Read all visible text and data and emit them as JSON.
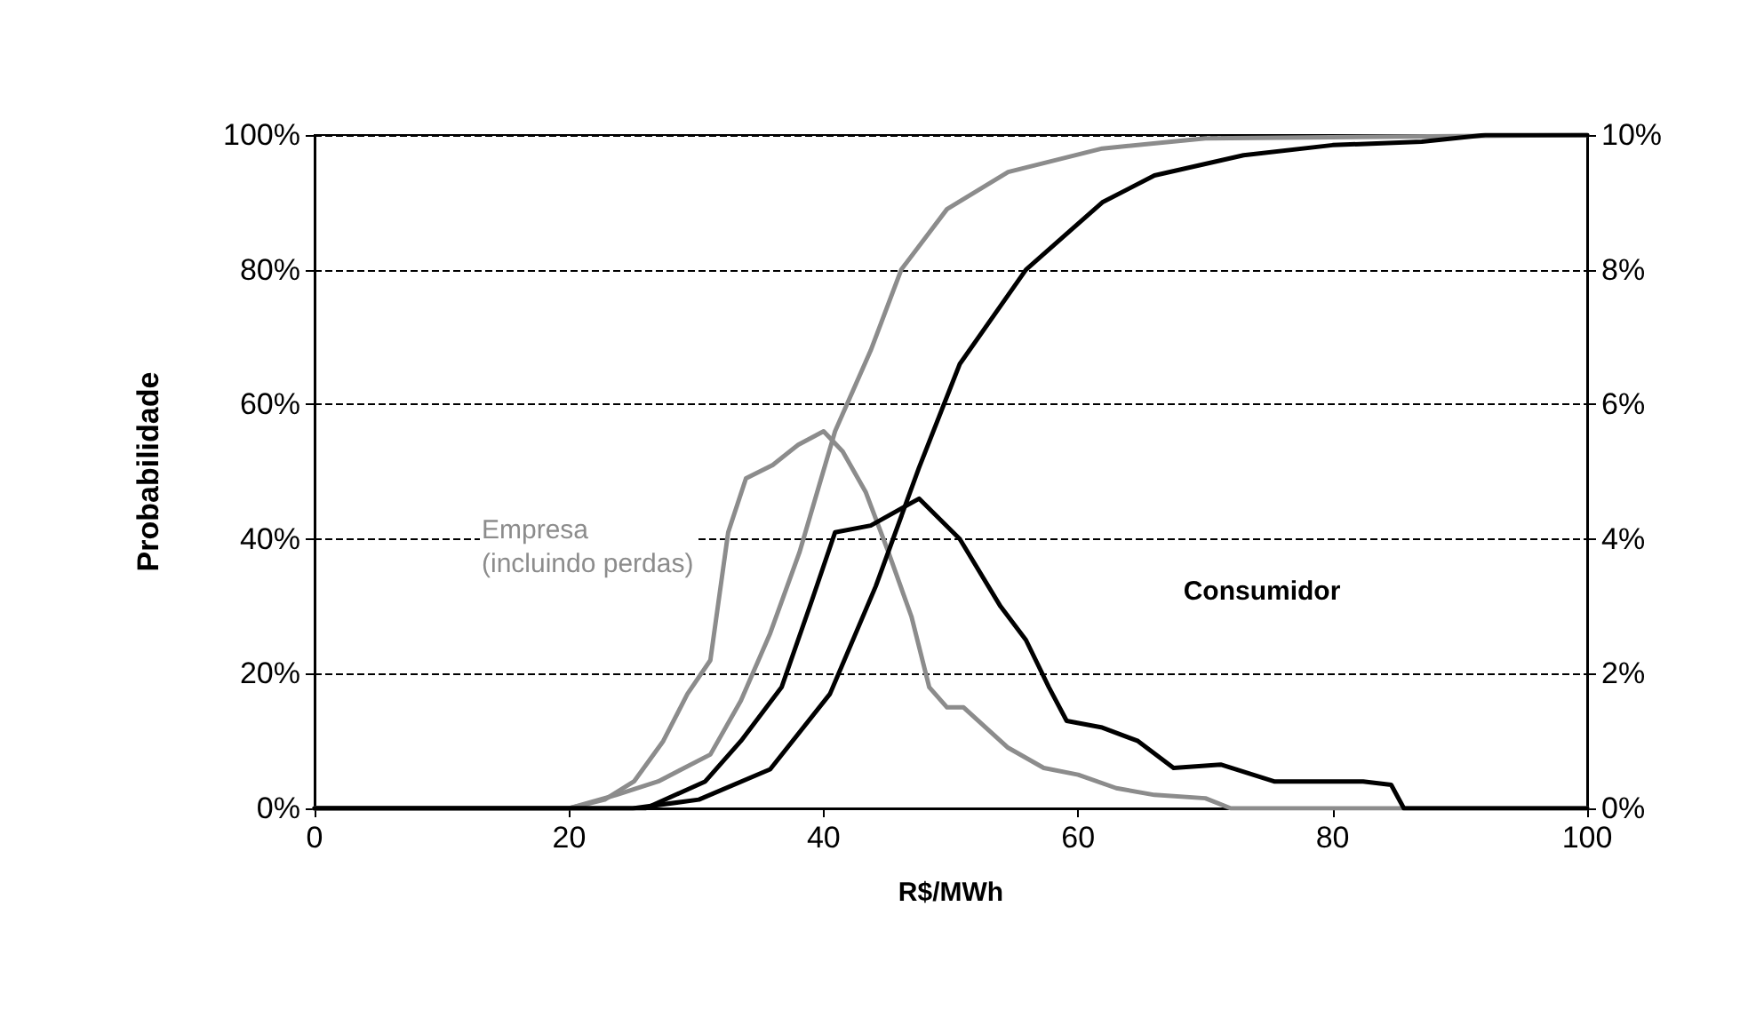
{
  "chart_data": {
    "type": "line",
    "xlabel": "R$/MWh",
    "ylabel": "Probabilidade",
    "x": [
      0,
      20,
      23.7,
      27,
      31.1,
      33.5,
      35.8,
      38.1,
      40.9,
      43.7,
      46.1,
      49.7,
      54.5,
      61.9,
      70,
      100
    ],
    "series": [
      {
        "color": "#8c8c8c",
        "values": [
          0,
          0,
          2,
          4,
          8,
          16,
          26,
          38,
          56,
          68,
          80,
          89,
          94.5,
          98,
          99.5,
          100
        ]
      },
      {
        "color": "#8c8c8c",
        "axis": "y2",
        "x": [
          0,
          20,
          22.8,
          25.1,
          27.4,
          29.3,
          31.1,
          32.5,
          33.9,
          36,
          38,
          40,
          41.5,
          43.3,
          45.1,
          46.9,
          48.3,
          49.7,
          51,
          54.5,
          57.3,
          60,
          63,
          66,
          70,
          72,
          100
        ],
        "values": [
          0,
          0,
          0.13,
          0.4,
          1,
          1.7,
          2.2,
          4.1,
          4.9,
          5.1,
          5.4,
          5.6,
          5.3,
          4.7,
          3.8,
          2.85,
          1.8,
          1.5,
          1.5,
          0.9,
          0.6,
          0.5,
          0.3,
          0.2,
          0.15,
          0,
          0
        ]
      },
      {
        "color": "#000000",
        "x": [
          0,
          25,
          30.2,
          35.8,
          40.5,
          44.1,
          47.5,
          50.7,
          55.9,
          61.9,
          66,
          73,
          80,
          87,
          92,
          100
        ],
        "values": [
          0,
          0,
          1.3,
          5.8,
          17,
          33,
          50.6,
          66,
          80,
          90,
          94,
          97,
          98.5,
          99,
          100,
          100
        ]
      },
      {
        "color": "#000000",
        "axis": "y2",
        "x": [
          0,
          26,
          30.7,
          33.5,
          36.7,
          39.1,
          40.9,
          43.7,
          47.5,
          50.7,
          53.9,
          55.9,
          57.7,
          59.1,
          61.9,
          64.7,
          67.5,
          71.2,
          75.4,
          82.4,
          84.6,
          85.6,
          100
        ],
        "values": [
          0,
          0,
          0.4,
          1,
          1.8,
          3.1,
          4.1,
          4.2,
          4.6,
          4,
          3,
          2.5,
          1.8,
          1.3,
          1.2,
          1,
          0.6,
          0.65,
          0.4,
          0.4,
          0.35,
          0,
          0
        ]
      }
    ],
    "xlim": [
      0,
      100
    ],
    "xticks": [
      0,
      20,
      40,
      60,
      80,
      100
    ],
    "ylim": [
      0,
      100
    ],
    "yticks": [
      {
        "value": 0,
        "label": "0%"
      },
      {
        "value": 20,
        "label": "20%"
      },
      {
        "value": 40,
        "label": "40%"
      },
      {
        "value": 60,
        "label": "60%"
      },
      {
        "value": 80,
        "label": "80%"
      },
      {
        "value": 100,
        "label": "100%"
      }
    ],
    "y2lim": [
      0,
      10
    ],
    "y2ticks": [
      {
        "value": 0,
        "label": "0%"
      },
      {
        "value": 2,
        "label": "2%"
      },
      {
        "value": 4,
        "label": "4%"
      },
      {
        "value": 6,
        "label": "6%"
      },
      {
        "value": 8,
        "label": "8%"
      },
      {
        "value": 10,
        "label": "10%"
      }
    ],
    "annotations": [
      "Empresa\n(incluindo perdas)",
      "Consumidor"
    ],
    "grid": "y",
    "marker": "none",
    "line_style": "solid"
  }
}
